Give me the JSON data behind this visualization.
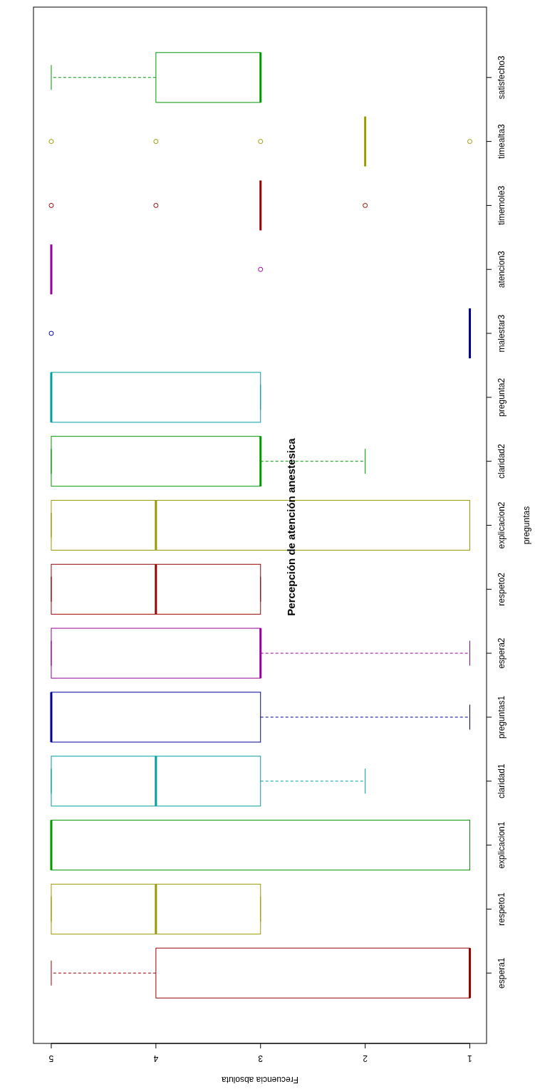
{
  "chart_data": {
    "type": "box",
    "orientation": "horizontal",
    "title": "Percepción de atención anestesica",
    "ylabel": "preguntas",
    "xlabel": "Frecuencia absoluta",
    "categories": [
      "satisfecho3",
      "timealta3",
      "timemole3",
      "atencion3",
      "malestar3",
      "pregunta2",
      "claridad2",
      "explicacion2",
      "respeto2",
      "espera2",
      "preguntas1",
      "claridad1",
      "explicacion1",
      "respeto1",
      "espera1"
    ],
    "colors": [
      "#009900",
      "#999900",
      "#990000",
      "#990099",
      "#000099",
      "#00a0a0",
      "#009900",
      "#999900",
      "#990000",
      "#990099",
      "#000099",
      "#00a0a0",
      "#009900",
      "#999900",
      "#990000"
    ],
    "boxes": [
      {
        "low": 3,
        "q1": 3,
        "median": 3,
        "q3": 4,
        "high": 5
      },
      {
        "low": 2,
        "q1": 2,
        "median": 2,
        "q3": 2,
        "high": 2,
        "outliers": [
          5,
          4,
          3,
          1
        ]
      },
      {
        "low": 3,
        "q1": 3,
        "median": 3,
        "q3": 3,
        "high": 3,
        "outliers": [
          5,
          4,
          2
        ]
      },
      {
        "low": 5,
        "q1": 5,
        "median": 5,
        "q3": 5,
        "high": 5,
        "outliers": [
          3
        ]
      },
      {
        "low": 1,
        "q1": 1,
        "median": 1,
        "q3": 1,
        "high": 1,
        "outliers": [
          5
        ]
      },
      {
        "low": 3,
        "q1": 3,
        "median": 5,
        "q3": 5,
        "high": 5
      },
      {
        "low": 2,
        "q1": 3,
        "median": 3,
        "q3": 5,
        "high": 5
      },
      {
        "low": 1,
        "q1": 1,
        "median": 4,
        "q3": 5,
        "high": 5
      },
      {
        "low": 3,
        "q1": 3,
        "median": 4,
        "q3": 5,
        "high": 5
      },
      {
        "low": 1,
        "q1": 3,
        "median": 3,
        "q3": 5,
        "high": 5
      },
      {
        "low": 1,
        "q1": 3,
        "median": 5,
        "q3": 5,
        "high": 5
      },
      {
        "low": 2,
        "q1": 3,
        "median": 4,
        "q3": 5,
        "high": 5
      },
      {
        "low": 1,
        "q1": 1,
        "median": 5,
        "q3": 5,
        "high": 5
      },
      {
        "low": 3,
        "q1": 3,
        "median": 4,
        "q3": 5,
        "high": 5
      },
      {
        "low": 1,
        "q1": 1,
        "median": 1,
        "q3": 4,
        "high": 5
      }
    ],
    "xlim": [
      5.17,
      0.84
    ],
    "xticks": [
      1,
      2,
      3,
      4,
      5
    ],
    "grid": false
  }
}
